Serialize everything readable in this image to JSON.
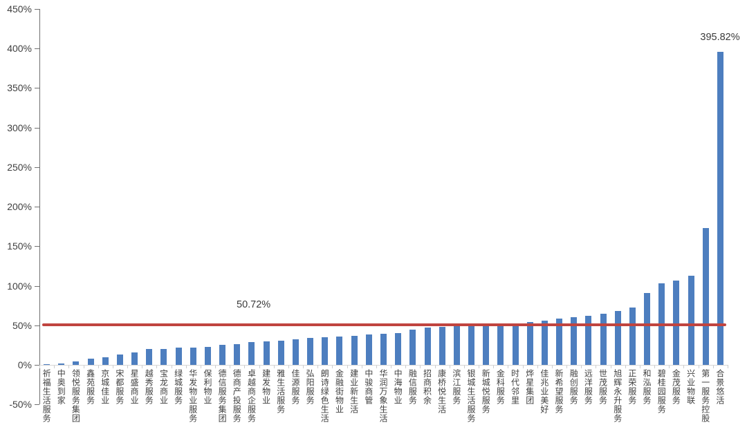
{
  "chart_data": {
    "type": "bar",
    "title": "",
    "xlabel": "",
    "ylabel": "",
    "unit": "%",
    "ylim": [
      -50,
      450
    ],
    "ytick_step": 50,
    "ytick_labels": [
      "450%",
      "400%",
      "350%",
      "300%",
      "250%",
      "200%",
      "150%",
      "100%",
      "50%",
      "0%",
      "-50%"
    ],
    "grid": false,
    "legend_position": "none",
    "bar_color": "#4d7ebf",
    "categories": [
      "祈福生活服务",
      "中奥到家",
      "领悦服务集团",
      "鑫苑服务",
      "京城佳业",
      "宋都服务",
      "星盛商业",
      "越秀服务",
      "宝龙商业",
      "绿城服务",
      "华发物业服务",
      "保利物业",
      "德信服务集团",
      "德商产投服务",
      "卓越商企服务",
      "建发物业",
      "雅生活服务",
      "佳源服务",
      "弘阳服务",
      "朗诗绿色生活",
      "金融街物业",
      "建业新生活",
      "中骏商管",
      "华润万象生活",
      "中海物业",
      "融信服务",
      "招商积余",
      "康桥悦生活",
      "滨江服务",
      "银城生活服务",
      "新城悦服务",
      "金科服务",
      "时代邻里",
      "烨星集团",
      "佳兆业美好",
      "新希望服务",
      "融创服务",
      "远洋服务",
      "世茂服务",
      "旭辉永升服务",
      "正荣服务",
      "和泓服务",
      "碧桂园服务",
      "金茂服务",
      "兴业物联",
      "第一服务控股",
      "合景悠活"
    ],
    "values": [
      0.5,
      2,
      4.5,
      8,
      9.5,
      13,
      16,
      20,
      20.5,
      21.5,
      22,
      23,
      25,
      26.5,
      29,
      29.5,
      31,
      32.5,
      34.5,
      35,
      36,
      36.5,
      38.5,
      39,
      40,
      45,
      47,
      48,
      49,
      50,
      50,
      51,
      52,
      54,
      56,
      58.5,
      60,
      62,
      65,
      68.5,
      72.5,
      91,
      103,
      107,
      113,
      173,
      395.82
    ],
    "reference_line": {
      "value": 50.72,
      "label": "50.72%",
      "color": "#c0443f"
    },
    "max_label": {
      "value": 395.82,
      "label": "395.82%",
      "category": "合景悠活"
    }
  }
}
